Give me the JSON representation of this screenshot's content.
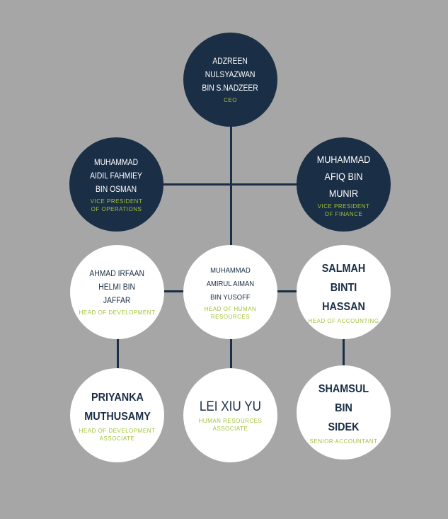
{
  "colors": {
    "background": "#a6a6a6",
    "dark": "#1a2e46",
    "accent": "#a3c23a",
    "light": "#ffffff"
  },
  "nodes": [
    {
      "name": "ADZREEN\nNULSYAZWAN\nBIN S.NADZEER",
      "role": "CEO"
    },
    {
      "name": "MUHAMMAD\nAIDIL FAHMIEY\nBIN OSMAN",
      "role": "VICE PRESIDENT\nOF OPERATIONS"
    },
    {
      "name": "MUHAMMAD\nAFIQ BIN MUNIR",
      "role": "VICE PRESIDENT\nOF FINANCE"
    },
    {
      "name": "AHMAD IRFAAN\nHELMI BIN\nJAFFAR",
      "role": "HEAD OF DEVELOPMENT"
    },
    {
      "name": "MUHAMMAD\nAMIRUL AIMAN\nBIN YUSOFF",
      "role": "HEAD OF HUMAN\nRESOURCES"
    },
    {
      "name": "SALMAH BINTI\nHASSAN",
      "role": "HEAD OF ACCOUNTING"
    },
    {
      "name": "PRIYANKA\nMUTHUSAMY",
      "role": "HEAD OF DEVELOPMENT\nASSOCIATE"
    },
    {
      "name": "LEI XIU YU",
      "role": "HUMAN RESOURCES\nASSOCIATE"
    },
    {
      "name": "SHAMSUL BIN\nSIDEK",
      "role": "SENIOR ACCOUNTANT"
    }
  ]
}
